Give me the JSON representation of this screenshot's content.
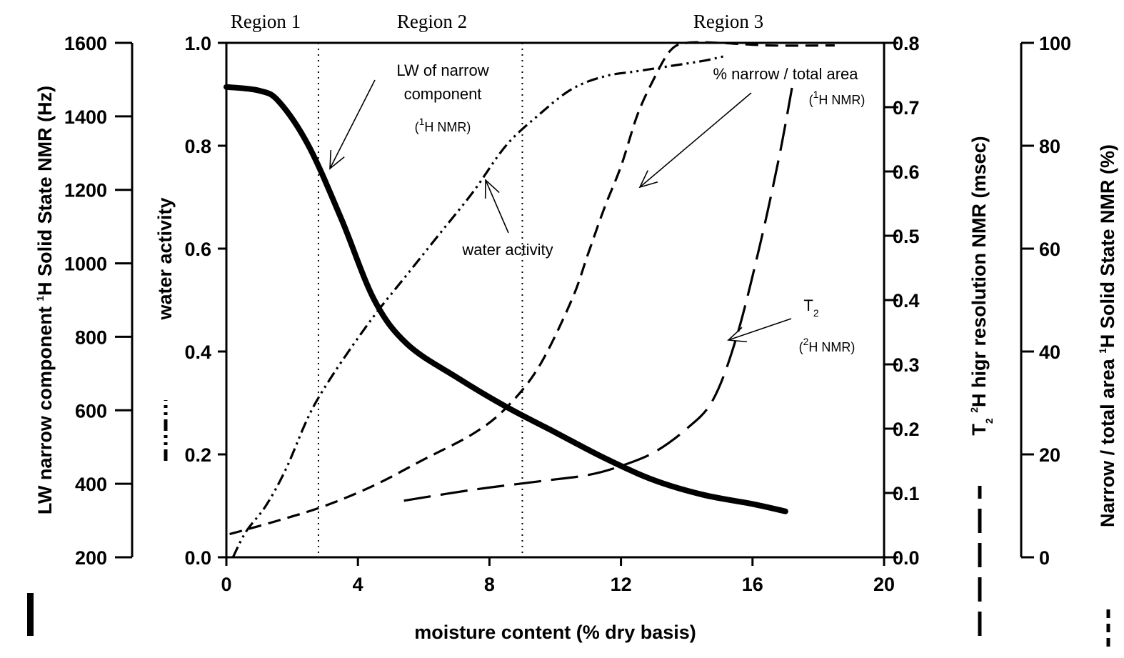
{
  "chart_data": {
    "type": "line",
    "x_axis": {
      "label": "moisture content (% dry basis)",
      "range": [
        0,
        20
      ],
      "ticks": [
        "0",
        "4",
        "8",
        "12",
        "16",
        "20"
      ]
    },
    "y_axes": [
      {
        "id": "lw",
        "label_pre": "LW narrow component ",
        "label_sup": "1",
        "label_post": "H Solid State NMR (Hz)",
        "legend_symbol": "solid-thick",
        "range": [
          200,
          1600
        ],
        "ticks": [
          "200",
          "400",
          "600",
          "800",
          "1000",
          "1200",
          "1400",
          "1600"
        ]
      },
      {
        "id": "aw",
        "label": "water activity",
        "legend_symbol": "dash-dot-dot",
        "range": [
          0,
          1
        ],
        "ticks": [
          "0.0",
          "0.2",
          "0.4",
          "0.6",
          "0.8",
          "1.0"
        ]
      },
      {
        "id": "t2",
        "label_pre": "T",
        "label_sub": "2",
        "label_sup": "2",
        "label_post": "H higr resolution NMR (msec)",
        "legend_symbol": "long-dash",
        "range": [
          0,
          0.8
        ],
        "ticks": [
          "0.0",
          "0.1",
          "0.2",
          "0.3",
          "0.4",
          "0.5",
          "0.6",
          "0.7",
          "0.8"
        ]
      },
      {
        "id": "area",
        "label_pre": "Narrow / total area ",
        "label_sup": "1",
        "label_post": "H Solid State NMR (%)",
        "legend_symbol": "short-dash",
        "range": [
          0,
          100
        ],
        "ticks": [
          "0",
          "20",
          "40",
          "60",
          "80",
          "100"
        ]
      }
    ],
    "regions": {
      "labels": [
        "Region 1",
        "Region 2",
        "Region 3"
      ],
      "boundaries": [
        2.8,
        9.0
      ]
    },
    "series": [
      {
        "id": "lw",
        "axis": "lw",
        "style": "solid-thick",
        "x": [
          0,
          1,
          1.6,
          2.5,
          3.5,
          4.5,
          5.5,
          7,
          8.5,
          10,
          11.5,
          13,
          14.5,
          16,
          17
        ],
        "y": [
          1480,
          1470,
          1440,
          1320,
          1120,
          900,
          780,
          690,
          610,
          540,
          470,
          410,
          370,
          345,
          325
        ]
      },
      {
        "id": "aw",
        "axis": "aw",
        "style": "dash-dot-dot",
        "x": [
          0.2,
          0.6,
          1.2,
          1.8,
          2.4,
          2.8,
          3.5,
          4.5,
          5.5,
          6.5,
          7.5,
          8.5,
          9.5,
          10.5,
          11.5,
          12.5,
          13.5,
          14.5,
          15.2
        ],
        "y": [
          0.0,
          0.05,
          0.1,
          0.17,
          0.26,
          0.31,
          0.38,
          0.47,
          0.55,
          0.63,
          0.71,
          0.8,
          0.86,
          0.91,
          0.935,
          0.945,
          0.955,
          0.965,
          0.975
        ]
      },
      {
        "id": "area",
        "axis": "area",
        "style": "short-dash",
        "x": [
          0.1,
          1.5,
          3,
          4.5,
          6,
          7.5,
          8.5,
          9.5,
          10.5,
          11,
          11.5,
          12,
          12.5,
          13,
          13.5,
          14,
          15,
          16.5,
          18.5
        ],
        "y": [
          4.5,
          7,
          10,
          14,
          19,
          24,
          29,
          37,
          50,
          59,
          68,
          76,
          86,
          93,
          98.5,
          100,
          100,
          99.5,
          99.5
        ]
      },
      {
        "id": "t2",
        "axis": "t2",
        "style": "long-dash",
        "x": [
          5.4,
          7.5,
          9.5,
          11,
          12,
          13,
          14,
          14.8,
          15.5,
          16.2,
          16.8,
          17.2
        ],
        "y": [
          0.088,
          0.105,
          0.118,
          0.128,
          0.142,
          0.163,
          0.2,
          0.245,
          0.34,
          0.48,
          0.62,
          0.73
        ]
      }
    ],
    "annotations": [
      {
        "id": "lw",
        "lines": [
          "LW of narrow",
          "component"
        ],
        "nmr_pre": "(",
        "nmr_sup": "1",
        "nmr_post": "H NMR)"
      },
      {
        "id": "aw",
        "lines": [
          "water activity"
        ]
      },
      {
        "id": "area",
        "lines": [
          "% narrow / total area"
        ],
        "nmr_pre": "(",
        "nmr_sup": "1",
        "nmr_post": "H NMR)"
      },
      {
        "id": "t2",
        "lines": [
          "T"
        ],
        "sub": "2",
        "nmr_pre": "(",
        "nmr_sup": "2",
        "nmr_post": "H NMR)"
      }
    ]
  }
}
